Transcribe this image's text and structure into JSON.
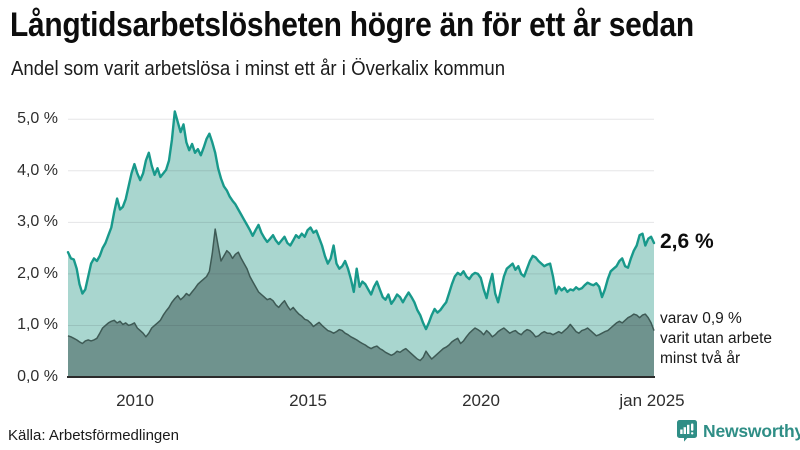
{
  "header": {
    "title": "Långtidsarbetslösheten högre än för ett år sedan",
    "subtitle": "Andel som varit arbetslösa i minst ett år i Överkalix kommun"
  },
  "chart_data": {
    "type": "area",
    "title": "Långtidsarbetslösheten högre än för ett år sedan",
    "subtitle": "Andel som varit arbetslösa i minst ett år i Överkalix kommun",
    "unit": "%",
    "x_start": "2008-02",
    "x_end": "2025-01",
    "x_resolution": "monthly",
    "x_tick_labels": [
      "2010",
      "2015",
      "2020",
      "jan 2025"
    ],
    "y_tick_labels": [
      "0,0 %",
      "1,0 %",
      "2,0 %",
      "3,0 %",
      "4,0 %",
      "5,0 %"
    ],
    "ylim": [
      0,
      5.4
    ],
    "grid": "horizontal",
    "colors": {
      "total_line": "#18998b",
      "total_fill": "#a9d6cf",
      "secondary_line": "#3e5a55",
      "secondary_fill": "#6f938e",
      "gridline": "rgba(40,40,60,0.12)",
      "axis": "#2b2b2b"
    },
    "series": [
      {
        "name": "Arbetslösa minst ett år",
        "end_value": 2.6,
        "end_label": "2,6 %",
        "values": [
          2.42,
          2.3,
          2.28,
          2.1,
          1.8,
          1.62,
          1.7,
          1.95,
          2.2,
          2.3,
          2.25,
          2.35,
          2.5,
          2.6,
          2.75,
          2.9,
          3.2,
          3.46,
          3.25,
          3.3,
          3.45,
          3.7,
          3.95,
          4.13,
          3.95,
          3.82,
          3.95,
          4.2,
          4.35,
          4.1,
          3.92,
          4.05,
          3.88,
          3.95,
          4.02,
          4.2,
          4.6,
          5.15,
          4.95,
          4.75,
          4.9,
          4.55,
          4.4,
          4.52,
          4.35,
          4.42,
          4.3,
          4.45,
          4.62,
          4.72,
          4.55,
          4.35,
          4.05,
          3.85,
          3.7,
          3.62,
          3.5,
          3.42,
          3.35,
          3.25,
          3.15,
          3.05,
          2.95,
          2.85,
          2.74,
          2.85,
          2.95,
          2.8,
          2.7,
          2.62,
          2.68,
          2.75,
          2.65,
          2.58,
          2.65,
          2.72,
          2.6,
          2.55,
          2.65,
          2.75,
          2.7,
          2.78,
          2.72,
          2.85,
          2.9,
          2.8,
          2.84,
          2.7,
          2.55,
          2.35,
          2.2,
          2.3,
          2.55,
          2.2,
          2.1,
          2.15,
          2.25,
          2.1,
          1.9,
          1.65,
          2.1,
          1.75,
          1.85,
          1.8,
          1.7,
          1.6,
          1.75,
          1.85,
          1.7,
          1.55,
          1.5,
          1.6,
          1.42,
          1.5,
          1.6,
          1.55,
          1.45,
          1.55,
          1.64,
          1.55,
          1.45,
          1.3,
          1.2,
          1.05,
          0.93,
          1.05,
          1.2,
          1.32,
          1.25,
          1.3,
          1.38,
          1.45,
          1.62,
          1.8,
          1.95,
          2.02,
          1.98,
          2.05,
          1.95,
          1.9,
          1.98,
          2.02,
          2.0,
          1.92,
          1.7,
          1.53,
          1.8,
          2.0,
          1.62,
          1.45,
          1.7,
          1.95,
          2.1,
          2.15,
          2.2,
          2.08,
          2.15,
          2.0,
          1.95,
          2.1,
          2.25,
          2.35,
          2.32,
          2.25,
          2.2,
          2.15,
          2.18,
          2.2,
          1.95,
          1.62,
          1.75,
          1.68,
          1.73,
          1.65,
          1.7,
          1.68,
          1.74,
          1.7,
          1.72,
          1.78,
          1.83,
          1.8,
          1.78,
          1.82,
          1.75,
          1.55,
          1.7,
          1.9,
          2.05,
          2.1,
          2.15,
          2.25,
          2.3,
          2.15,
          2.12,
          2.3,
          2.45,
          2.55,
          2.75,
          2.78,
          2.55,
          2.68,
          2.72,
          2.6
        ]
      },
      {
        "name": "varav utan arbete minst två år",
        "end_value": 0.9,
        "end_label": "varav 0,9 % varit utan arbete minst två år",
        "values": [
          0.8,
          0.78,
          0.75,
          0.72,
          0.68,
          0.65,
          0.7,
          0.72,
          0.7,
          0.72,
          0.75,
          0.85,
          0.95,
          1.0,
          1.05,
          1.08,
          1.1,
          1.05,
          1.08,
          1.02,
          1.05,
          1.0,
          1.02,
          1.05,
          0.95,
          0.9,
          0.85,
          0.78,
          0.85,
          0.95,
          1.0,
          1.05,
          1.1,
          1.2,
          1.28,
          1.35,
          1.45,
          1.52,
          1.58,
          1.5,
          1.55,
          1.62,
          1.58,
          1.65,
          1.72,
          1.8,
          1.85,
          1.9,
          1.95,
          2.05,
          2.4,
          2.87,
          2.55,
          2.25,
          2.35,
          2.45,
          2.4,
          2.3,
          2.38,
          2.42,
          2.3,
          2.2,
          2.1,
          1.95,
          1.85,
          1.75,
          1.65,
          1.6,
          1.55,
          1.5,
          1.52,
          1.48,
          1.4,
          1.35,
          1.42,
          1.48,
          1.38,
          1.3,
          1.35,
          1.28,
          1.22,
          1.18,
          1.12,
          1.1,
          1.05,
          0.98,
          1.02,
          1.06,
          1.0,
          0.95,
          0.9,
          0.88,
          0.85,
          0.88,
          0.92,
          0.9,
          0.85,
          0.82,
          0.78,
          0.75,
          0.72,
          0.68,
          0.65,
          0.62,
          0.58,
          0.55,
          0.58,
          0.6,
          0.55,
          0.52,
          0.48,
          0.45,
          0.42,
          0.45,
          0.5,
          0.48,
          0.52,
          0.55,
          0.5,
          0.45,
          0.4,
          0.35,
          0.32,
          0.38,
          0.5,
          0.42,
          0.35,
          0.4,
          0.45,
          0.5,
          0.55,
          0.58,
          0.62,
          0.68,
          0.72,
          0.75,
          0.65,
          0.7,
          0.78,
          0.85,
          0.9,
          0.95,
          0.92,
          0.88,
          0.82,
          0.9,
          0.85,
          0.78,
          0.82,
          0.88,
          0.92,
          0.95,
          0.9,
          0.85,
          0.88,
          0.9,
          0.85,
          0.82,
          0.88,
          0.92,
          0.9,
          0.85,
          0.78,
          0.8,
          0.85,
          0.88,
          0.85,
          0.85,
          0.82,
          0.85,
          0.88,
          0.85,
          0.9,
          0.95,
          1.02,
          0.95,
          0.88,
          0.85,
          0.9,
          0.92,
          0.95,
          0.9,
          0.85,
          0.8,
          0.82,
          0.85,
          0.88,
          0.9,
          0.95,
          1.0,
          1.05,
          1.08,
          1.05,
          1.1,
          1.15,
          1.18,
          1.22,
          1.2,
          1.15,
          1.2,
          1.22,
          1.15,
          1.05,
          0.9
        ]
      }
    ]
  },
  "annotations": {
    "total_end": "2,6 %",
    "secondary_line1": "varav 0,9 %",
    "secondary_line2": "varit utan arbete",
    "secondary_line3": "minst två år"
  },
  "footer": {
    "source": "Källa: Arbetsförmedlingen",
    "brand": "Newsworthy"
  }
}
